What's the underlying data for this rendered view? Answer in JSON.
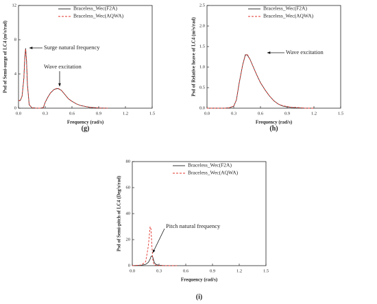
{
  "chart_data": [
    {
      "type": "line",
      "label": "(g)",
      "ylabel": "Psd of Semi-surge of LC4 (m²s/rad)",
      "xlabel": "Frequency (rad/s)",
      "xlim": [
        0,
        1.5
      ],
      "xticks": [
        {
          "value": 0,
          "label": "0.0"
        },
        0.3,
        0.6,
        0.9,
        1.2,
        1.5
      ],
      "ylim": [
        0,
        12
      ],
      "yticks": [
        0,
        4,
        8,
        12
      ],
      "x": [
        0,
        0.02,
        0.04,
        0.06,
        0.07,
        0.08,
        0.09,
        0.1,
        0.12,
        0.15,
        0.2,
        0.25,
        0.28,
        0.3,
        0.33,
        0.36,
        0.4,
        0.44,
        0.48,
        0.52,
        0.56,
        0.6,
        0.65,
        0.7,
        0.8,
        0.9,
        1.0
      ],
      "series": [
        {
          "name": "Braceless_Wec(F2A)",
          "color": "#333333",
          "line_style": "solid",
          "values": [
            0.9,
            0.9,
            1.4,
            3.5,
            5.8,
            7.0,
            5.5,
            2.8,
            0.4,
            0.05,
            0,
            0,
            0.1,
            0.7,
            1.3,
            1.8,
            2.2,
            2.3,
            2.1,
            1.6,
            1.1,
            0.8,
            0.5,
            0.3,
            0.1,
            0.02,
            0
          ]
        },
        {
          "name": "Braceless_Wec(AQWA)",
          "color": "#e0302a",
          "line_style": "dashed",
          "values": [
            0.9,
            0.9,
            1.4,
            3.4,
            5.9,
            6.9,
            5.6,
            2.7,
            0.4,
            0.05,
            0,
            0,
            0.1,
            0.7,
            1.3,
            1.8,
            2.2,
            2.35,
            2.1,
            1.6,
            1.1,
            0.8,
            0.5,
            0.3,
            0.1,
            0.02,
            0
          ]
        }
      ],
      "annotations": [
        "Surge natural frequency",
        "Wave excitation"
      ]
    },
    {
      "type": "line",
      "label": "(h)",
      "ylabel": "Psd of Relative heave of LC4 (m²s/rad)",
      "xlabel": "Frequency (rad/s)",
      "xlim": [
        0,
        1.5
      ],
      "xticks": [
        {
          "value": 0,
          "label": "0.0"
        },
        0.3,
        0.6,
        0.9,
        1.2,
        1.5
      ],
      "ylim": [
        0,
        2.5
      ],
      "yticks": [
        {
          "value": 0,
          "label": "0.0"
        },
        0.5,
        {
          "value": 1,
          "label": "1.0"
        },
        1.5,
        {
          "value": 2,
          "label": "2.0"
        },
        2.5
      ],
      "x": [
        0,
        0.1,
        0.2,
        0.25,
        0.3,
        0.33,
        0.36,
        0.4,
        0.43,
        0.45,
        0.48,
        0.52,
        0.56,
        0.6,
        0.65,
        0.7,
        0.75,
        0.8,
        0.85,
        0.9,
        0.95,
        1.0,
        1.1,
        1.2
      ],
      "series": [
        {
          "name": "Braceless_Wec(F2A)",
          "color": "#333333",
          "line_style": "solid",
          "values": [
            0,
            0,
            0,
            0.01,
            0.05,
            0.2,
            0.6,
            1.05,
            1.3,
            1.3,
            1.2,
            1.0,
            0.8,
            0.62,
            0.45,
            0.3,
            0.18,
            0.1,
            0.05,
            0.03,
            0.02,
            0.01,
            0,
            0
          ]
        },
        {
          "name": "Braceless_Wec(AQWA)",
          "color": "#e0302a",
          "line_style": "dashed",
          "values": [
            0,
            0,
            0,
            0.01,
            0.05,
            0.2,
            0.6,
            1.05,
            1.28,
            1.32,
            1.2,
            1.0,
            0.8,
            0.62,
            0.45,
            0.3,
            0.18,
            0.1,
            0.06,
            0.04,
            0.02,
            0.02,
            0,
            0
          ]
        }
      ],
      "annotations": [
        "Wave excitation"
      ]
    },
    {
      "type": "line",
      "label": "(i)",
      "ylabel": "Psd of Semi-pitch of LC4 (Deg²s/rad)",
      "xlabel": "Frequency (rad/s)",
      "xlim": [
        0,
        1.5
      ],
      "xticks": [
        {
          "value": 0,
          "label": "0.0"
        },
        0.3,
        0.6,
        0.9,
        1.2,
        1.5
      ],
      "ylim": [
        0,
        80
      ],
      "yticks": [
        0,
        20,
        40,
        60,
        80
      ],
      "x": [
        0,
        0.1,
        0.15,
        0.18,
        0.2,
        0.21,
        0.22,
        0.23,
        0.24,
        0.25,
        0.27,
        0.3,
        0.35,
        0.4,
        0.5
      ],
      "series": [
        {
          "name": "Braceless_Wec(F2A)",
          "color": "#333333",
          "line_style": "solid",
          "values": [
            0,
            0.3,
            1,
            2.5,
            5,
            7,
            7.5,
            6.5,
            4,
            2,
            0.8,
            0.3,
            0.1,
            0,
            0
          ]
        },
        {
          "name": "Braceless_Wec(AQWA)",
          "color": "#e0302a",
          "line_style": "dashed",
          "values": [
            0,
            0.5,
            3,
            15,
            30,
            28,
            15,
            5,
            1.5,
            0.5,
            0.2,
            0.1,
            0,
            0,
            0
          ]
        }
      ],
      "annotations": [
        "Pitch natural frequency"
      ]
    }
  ]
}
